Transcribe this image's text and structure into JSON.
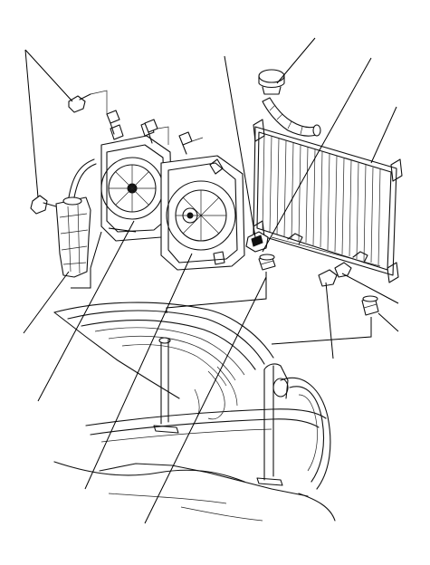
{
  "figure": {
    "type": "exploded-parts-diagram",
    "parts": [
      "bolt-left-top",
      "bolt-left-lower",
      "reserve-tank",
      "fan-shroud-assembly",
      "radiator-cap",
      "upper-radiator-hose",
      "radiator",
      "drain-plug",
      "upper-cushion-left",
      "lower-cushion",
      "lower-cushion-right",
      "vehicle-front-body"
    ],
    "callouts": [
      {
        "id": "bolt-a"
      },
      {
        "id": "bolt-b"
      },
      {
        "id": "radiator-cap"
      },
      {
        "id": "radiator"
      },
      {
        "id": "drain-plug"
      },
      {
        "id": "reserve-tank"
      },
      {
        "id": "fan-shroud"
      },
      {
        "id": "cushion-upper"
      },
      {
        "id": "cushion-lower"
      }
    ]
  }
}
